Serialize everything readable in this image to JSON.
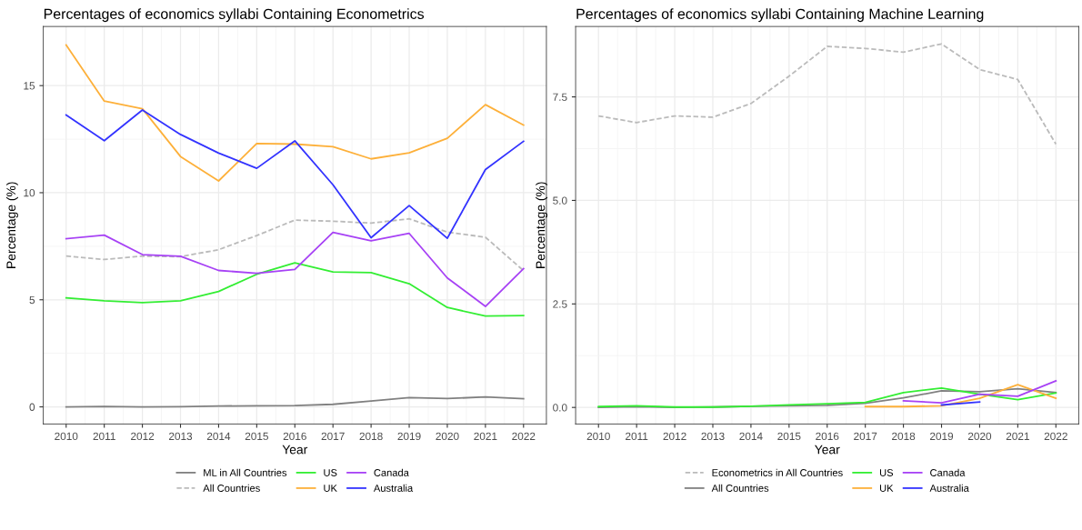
{
  "chart_data": [
    {
      "type": "line",
      "title": "Percentages of economics syllabi Containing Econometrics",
      "xlabel": "Year",
      "ylabel": "Percentage (%)",
      "x": [
        2010,
        2011,
        2012,
        2013,
        2014,
        2015,
        2016,
        2017,
        2018,
        2019,
        2020,
        2021,
        2022
      ],
      "series": [
        {
          "name": "ML in All Countries",
          "color": "#808080",
          "line_style": "solid",
          "values": [
            0,
            0.02,
            0,
            0.01,
            0.04,
            0.05,
            0.06,
            0.12,
            0.27,
            0.43,
            0.39,
            0.46,
            0.38
          ]
        },
        {
          "name": "All Countries",
          "color": "#bbbbbb",
          "line_style": "dashed",
          "values": [
            7.04,
            6.88,
            7.04,
            7.01,
            7.34,
            8.0,
            8.72,
            8.67,
            8.58,
            8.78,
            8.16,
            7.92,
            6.36
          ]
        },
        {
          "name": "US",
          "color": "#33ee33",
          "line_style": "solid",
          "values": [
            5.09,
            4.95,
            4.87,
            4.95,
            5.39,
            6.19,
            6.72,
            6.3,
            6.27,
            5.75,
            4.64,
            4.24,
            4.26
          ]
        },
        {
          "name": "UK",
          "color": "#fdb03a",
          "line_style": "solid",
          "values": [
            16.9,
            14.28,
            13.92,
            11.69,
            10.55,
            12.3,
            12.27,
            12.15,
            11.58,
            11.86,
            12.54,
            14.11,
            13.16
          ]
        },
        {
          "name": "Canada",
          "color": "#a742f5",
          "line_style": "solid",
          "values": [
            7.85,
            8.02,
            7.11,
            7.03,
            6.37,
            6.24,
            6.42,
            8.15,
            7.75,
            8.1,
            6.02,
            4.69,
            6.45
          ]
        },
        {
          "name": "Australia",
          "color": "#3333ff",
          "line_style": "solid",
          "values": [
            13.63,
            12.43,
            13.86,
            12.72,
            11.85,
            11.14,
            12.42,
            10.37,
            7.9,
            9.4,
            7.87,
            11.08,
            12.4
          ]
        }
      ],
      "xlim": [
        2009.4,
        2022.6
      ],
      "xticks": [
        2010,
        2011,
        2012,
        2013,
        2014,
        2015,
        2016,
        2017,
        2018,
        2019,
        2020,
        2021,
        2022
      ],
      "ylim": [
        -0.8,
        17.76
      ],
      "yticks": [
        0,
        5,
        10,
        15
      ],
      "grid": true,
      "legend": "bottom",
      "marker": "none"
    },
    {
      "type": "line",
      "title": "Percentages of economics syllabi Containing Machine Learning",
      "xlabel": "Year",
      "ylabel": "Percentage (%)",
      "x": [
        2010,
        2011,
        2012,
        2013,
        2014,
        2015,
        2016,
        2017,
        2018,
        2019,
        2020,
        2021,
        2022
      ],
      "series": [
        {
          "name": "Econometrics in All Countries",
          "color": "#bbbbbb",
          "line_style": "dashed",
          "values": [
            7.04,
            6.88,
            7.04,
            7.01,
            7.34,
            8.0,
            8.72,
            8.67,
            8.58,
            8.78,
            8.16,
            7.92,
            6.36
          ]
        },
        {
          "name": "All Countries",
          "color": "#808080",
          "line_style": "solid",
          "values": [
            0,
            0.02,
            0,
            0.01,
            0.03,
            0.04,
            0.05,
            0.1,
            0.23,
            0.4,
            0.38,
            0.45,
            0.36
          ]
        },
        {
          "name": "US",
          "color": "#33ee33",
          "line_style": "solid",
          "values": [
            0.02,
            0.04,
            0.01,
            0.01,
            0.03,
            0.06,
            0.09,
            0.12,
            0.36,
            0.47,
            0.32,
            0.19,
            0.35
          ]
        },
        {
          "name": "UK",
          "color": "#fdb03a",
          "line_style": "solid",
          "x": [
            2017,
            2018,
            2019,
            2020,
            2021,
            2022
          ],
          "values": [
            0.02,
            0.02,
            0.04,
            0.22,
            0.55,
            0.22
          ]
        },
        {
          "name": "Canada",
          "color": "#a742f5",
          "line_style": "solid",
          "x": [
            2018,
            2019,
            2020,
            2021,
            2022
          ],
          "values": [
            0.16,
            0.11,
            0.32,
            0.27,
            0.64
          ]
        },
        {
          "name": "Australia",
          "color": "#3333ff",
          "line_style": "solid",
          "x": [
            2019,
            2020
          ],
          "values": [
            0.06,
            0.13
          ]
        }
      ],
      "xlim": [
        2009.4,
        2022.6
      ],
      "xticks": [
        2010,
        2011,
        2012,
        2013,
        2014,
        2015,
        2016,
        2017,
        2018,
        2019,
        2020,
        2021,
        2022
      ],
      "ylim": [
        -0.4,
        9.2
      ],
      "yticks": [
        {
          "value": 0,
          "label": "0.0"
        },
        {
          "value": 2.5,
          "label": "2.5"
        },
        {
          "value": 5,
          "label": "5.0"
        },
        {
          "value": 7.5,
          "label": "7.5"
        }
      ],
      "grid": true,
      "legend": "bottom",
      "marker": "none"
    }
  ]
}
